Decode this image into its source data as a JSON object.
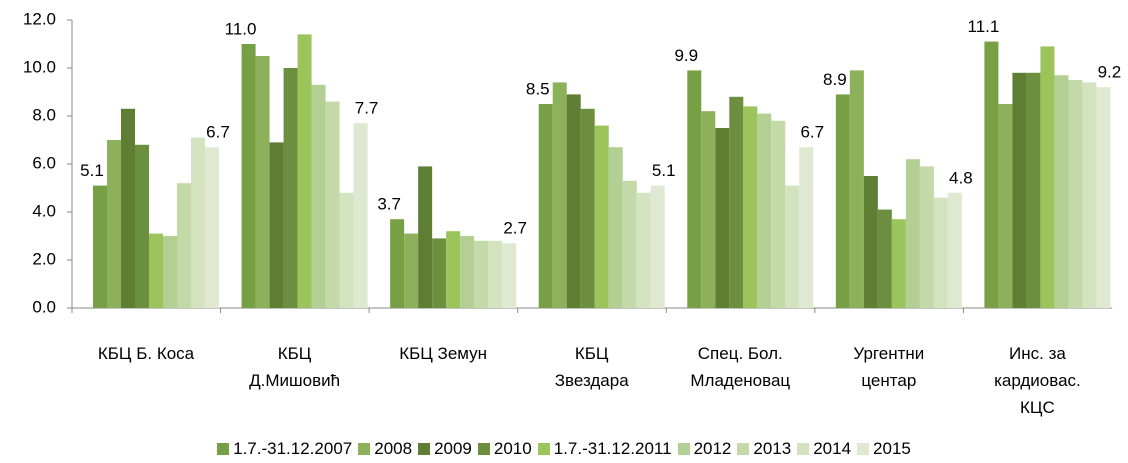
{
  "chart_data": {
    "type": "bar",
    "categories": [
      "КБЦ Б. Коса",
      "КБЦ\nД.Мишовић",
      "КБЦ Земун",
      "КБЦ\nЗвездара",
      "Спец. Бол.\nМладеновац",
      "Ургентни\nцентар",
      "Инс. за\nкардиовас.\nКЦС"
    ],
    "series": [
      {
        "name": "1.7.-31.12.2007",
        "color": "#77a045",
        "values": [
          5.1,
          11.0,
          3.7,
          8.5,
          9.9,
          8.9,
          11.1
        ],
        "value_labels": [
          "5.1",
          "11.0",
          "3.7",
          "8.5",
          "9.9",
          "8.9",
          "11.1"
        ]
      },
      {
        "name": "2008",
        "color": "#8db05a",
        "values": [
          7.0,
          10.5,
          3.1,
          9.4,
          8.2,
          9.9,
          8.5
        ]
      },
      {
        "name": "2009",
        "color": "#5e7f33",
        "values": [
          8.3,
          6.9,
          5.9,
          8.9,
          7.5,
          5.5,
          9.8
        ]
      },
      {
        "name": "2010",
        "color": "#6b8f3e",
        "values": [
          6.8,
          10.0,
          2.9,
          8.3,
          8.8,
          4.1,
          9.8
        ]
      },
      {
        "name": "1.7.-31.12.2011",
        "color": "#9bc45a",
        "values": [
          3.1,
          11.4,
          3.2,
          7.6,
          8.4,
          3.7,
          10.9
        ]
      },
      {
        "name": "2012",
        "color": "#b3cf93",
        "values": [
          3.0,
          9.3,
          3.0,
          6.7,
          8.1,
          6.2,
          9.7
        ]
      },
      {
        "name": "2013",
        "color": "#c3d9a8",
        "values": [
          5.2,
          8.6,
          2.8,
          5.3,
          7.8,
          5.9,
          9.5
        ]
      },
      {
        "name": "2014",
        "color": "#d3e3bf",
        "values": [
          7.1,
          4.8,
          2.8,
          4.8,
          5.1,
          4.6,
          9.4
        ]
      },
      {
        "name": "2015",
        "color": "#dfe9d1",
        "values": [
          6.7,
          7.7,
          2.7,
          5.1,
          6.7,
          4.8,
          9.2
        ],
        "value_labels": [
          "6.7",
          "7.7",
          "2.7",
          "5.1",
          "6.7",
          "4.8",
          "9.2"
        ]
      }
    ],
    "ylim": [
      0,
      12
    ],
    "yticks": [
      {
        "value": 0,
        "label": "0.0"
      },
      {
        "value": 2,
        "label": "2.0"
      },
      {
        "value": 4,
        "label": "4.0"
      },
      {
        "value": 6,
        "label": "6.0"
      },
      {
        "value": 8,
        "label": "8.0"
      },
      {
        "value": 10,
        "label": "10.0"
      },
      {
        "value": 12,
        "label": "12.0"
      }
    ],
    "grid": false
  }
}
